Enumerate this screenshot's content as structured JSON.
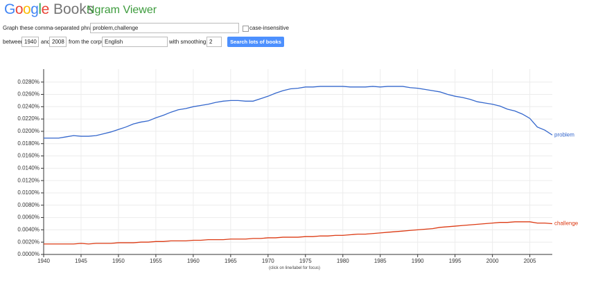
{
  "ui": {
    "logo_google": "Google",
    "logo_books": "Books",
    "app_title": "Ngram Viewer",
    "phrases_label": "Graph these comma-separated phrases:",
    "phrases_value": "problem,challenge",
    "case_label": "case-insensitive",
    "between_label": "between",
    "start_year": "1940",
    "and_label": "and",
    "end_year": "2008",
    "corpus_label": "from the corpus",
    "corpus_value": "English",
    "smoothing_label": "with smoothing of",
    "smoothing_value": "2",
    "search_button": "Search lots of books",
    "footer_note": "(click on line/label for focus)"
  },
  "chart_data": {
    "type": "line",
    "x": [
      1940,
      1941,
      1942,
      1943,
      1944,
      1945,
      1946,
      1947,
      1948,
      1949,
      1950,
      1951,
      1952,
      1953,
      1954,
      1955,
      1956,
      1957,
      1958,
      1959,
      1960,
      1961,
      1962,
      1963,
      1964,
      1965,
      1966,
      1967,
      1968,
      1969,
      1970,
      1971,
      1972,
      1973,
      1974,
      1975,
      1976,
      1977,
      1978,
      1979,
      1980,
      1981,
      1982,
      1983,
      1984,
      1985,
      1986,
      1987,
      1988,
      1989,
      1990,
      1991,
      1992,
      1993,
      1994,
      1995,
      1996,
      1997,
      1998,
      1999,
      2000,
      2001,
      2002,
      2003,
      2004,
      2005,
      2006,
      2007,
      2008
    ],
    "series": [
      {
        "name": "problem",
        "color": "#3366cc",
        "values": [
          0.0189,
          0.0189,
          0.0189,
          0.0191,
          0.0193,
          0.0192,
          0.0192,
          0.0193,
          0.0196,
          0.0199,
          0.0203,
          0.0207,
          0.0212,
          0.0215,
          0.0217,
          0.0222,
          0.0226,
          0.0231,
          0.0235,
          0.0237,
          0.024,
          0.0242,
          0.0244,
          0.0247,
          0.0249,
          0.025,
          0.025,
          0.0249,
          0.0249,
          0.0253,
          0.0257,
          0.0262,
          0.0266,
          0.0269,
          0.027,
          0.0272,
          0.0272,
          0.0273,
          0.0273,
          0.0273,
          0.0273,
          0.0272,
          0.0272,
          0.0272,
          0.0273,
          0.0272,
          0.0273,
          0.0273,
          0.0273,
          0.0271,
          0.027,
          0.0268,
          0.0266,
          0.0264,
          0.026,
          0.0257,
          0.0255,
          0.0252,
          0.0248,
          0.0246,
          0.0244,
          0.0241,
          0.0236,
          0.0233,
          0.0228,
          0.0221,
          0.0207,
          0.0202,
          0.0194
        ]
      },
      {
        "name": "challenge",
        "color": "#dc3912",
        "values": [
          0.0017,
          0.0017,
          0.0017,
          0.0017,
          0.0017,
          0.0018,
          0.0017,
          0.0018,
          0.0018,
          0.0018,
          0.0019,
          0.0019,
          0.0019,
          0.002,
          0.002,
          0.0021,
          0.0021,
          0.0022,
          0.0022,
          0.0022,
          0.0023,
          0.0023,
          0.0024,
          0.0024,
          0.0024,
          0.0025,
          0.0025,
          0.0025,
          0.0026,
          0.0026,
          0.0027,
          0.0027,
          0.0028,
          0.0028,
          0.0028,
          0.0029,
          0.0029,
          0.003,
          0.003,
          0.0031,
          0.0031,
          0.0032,
          0.0033,
          0.0033,
          0.0034,
          0.0035,
          0.0036,
          0.0037,
          0.0038,
          0.0039,
          0.004,
          0.0041,
          0.0042,
          0.0044,
          0.0045,
          0.0046,
          0.0047,
          0.0048,
          0.0049,
          0.005,
          0.0051,
          0.0052,
          0.0052,
          0.0053,
          0.0053,
          0.0053,
          0.0051,
          0.0051,
          0.005
        ]
      }
    ],
    "xlim": [
      1940,
      2008
    ],
    "xticks": [
      1940,
      1945,
      1950,
      1955,
      1960,
      1965,
      1970,
      1975,
      1980,
      1985,
      1990,
      1995,
      2000,
      2005
    ],
    "ylim": [
      0,
      0.0301
    ],
    "yticks": [
      {
        "value": 0,
        "label": "0.0000%"
      },
      {
        "value": 0.002,
        "label": "0.0020%"
      },
      {
        "value": 0.004,
        "label": "0.0040%"
      },
      {
        "value": 0.006,
        "label": "0.0060%"
      },
      {
        "value": 0.008,
        "label": "0.0080%"
      },
      {
        "value": 0.01,
        "label": "0.0100%"
      },
      {
        "value": 0.012,
        "label": "0.0120%"
      },
      {
        "value": 0.014,
        "label": "0.0140%"
      },
      {
        "value": 0.016,
        "label": "0.0160%"
      },
      {
        "value": 0.018,
        "label": "0.0180%"
      },
      {
        "value": 0.02,
        "label": "0.0200%"
      },
      {
        "value": 0.022,
        "label": "0.0220%"
      },
      {
        "value": 0.024,
        "label": "0.0240%"
      },
      {
        "value": 0.026,
        "label": "0.0260%"
      },
      {
        "value": 0.028,
        "label": "0.0280%"
      }
    ],
    "grid": true
  }
}
